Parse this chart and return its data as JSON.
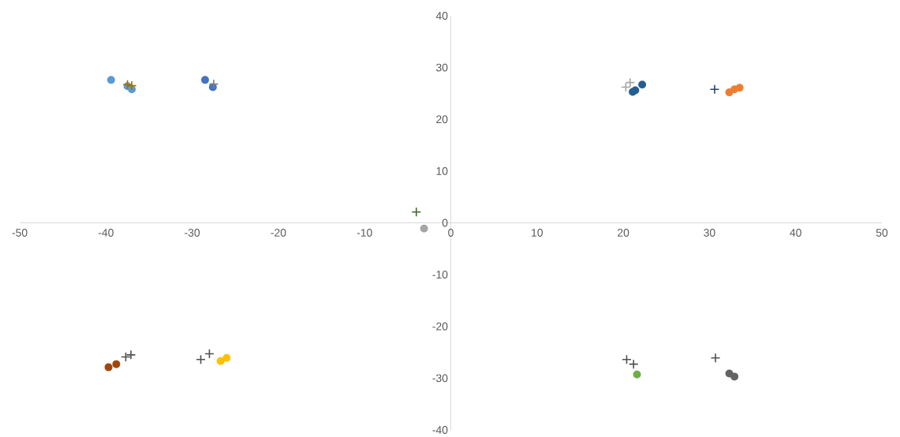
{
  "chart_data": {
    "type": "scatter",
    "xlim": [
      -50,
      50
    ],
    "ylim": [
      -40,
      40
    ],
    "xticks": [
      -50,
      -40,
      -30,
      -20,
      -10,
      0,
      10,
      20,
      30,
      40,
      50
    ],
    "yticks": [
      -40,
      -30,
      -20,
      -10,
      0,
      10,
      20,
      30,
      40
    ],
    "grid": false,
    "series": [
      {
        "color": "#5b9bd5",
        "marker": "circle",
        "x": [
          -39.4,
          -37.5,
          -37.0
        ],
        "values": [
          27.6,
          26.4,
          25.8
        ]
      },
      {
        "color": "#997300",
        "marker": "cross",
        "x": [
          -37.5,
          -37.0
        ],
        "values": [
          26.7,
          26.5
        ]
      },
      {
        "color": "#4472c4",
        "marker": "circle",
        "x": [
          -28.5,
          -27.6
        ],
        "values": [
          27.6,
          26.2
        ]
      },
      {
        "color": "#7f7f7f",
        "marker": "cross",
        "x": [
          -27.5
        ],
        "values": [
          26.8
        ]
      },
      {
        "color": "#a5a5a5",
        "marker": "cross",
        "x": [
          20.3,
          20.8
        ],
        "values": [
          26.2,
          27.1
        ]
      },
      {
        "color": "#255e91",
        "marker": "circle",
        "x": [
          21.1,
          21.4,
          22.2
        ],
        "values": [
          25.3,
          25.6,
          26.7
        ]
      },
      {
        "color": "#264478",
        "marker": "cross",
        "x": [
          30.6
        ],
        "values": [
          25.8
        ]
      },
      {
        "color": "#ed7d31",
        "marker": "circle",
        "x": [
          32.3,
          32.9,
          33.5
        ],
        "values": [
          25.2,
          25.8,
          26.1
        ]
      },
      {
        "color": "#43682b",
        "marker": "cross",
        "x": [
          -4.0
        ],
        "values": [
          2.1
        ]
      },
      {
        "color": "#a5a5a5",
        "marker": "circle",
        "x": [
          -3.1
        ],
        "values": [
          -1.1
        ]
      },
      {
        "color": "#9e480e",
        "marker": "circle",
        "x": [
          -39.7,
          -38.8
        ],
        "values": [
          -27.9,
          -27.3
        ]
      },
      {
        "color": "#505050",
        "marker": "cross",
        "x": [
          -37.7,
          -37.1,
          -29.0,
          -28.0,
          20.4,
          21.2,
          30.7
        ],
        "values": [
          -25.9,
          -25.5,
          -26.4,
          -25.3,
          -26.4,
          -27.3,
          -26.1
        ]
      },
      {
        "color": "#ffc000",
        "marker": "circle",
        "x": [
          -26.7,
          -26.0
        ],
        "values": [
          -26.7,
          -26.1
        ]
      },
      {
        "color": "#70ad47",
        "marker": "circle",
        "x": [
          21.6
        ],
        "values": [
          -29.3
        ]
      },
      {
        "color": "#636363",
        "marker": "circle",
        "x": [
          32.3,
          32.9
        ],
        "values": [
          -29.1,
          -29.7
        ]
      }
    ]
  }
}
